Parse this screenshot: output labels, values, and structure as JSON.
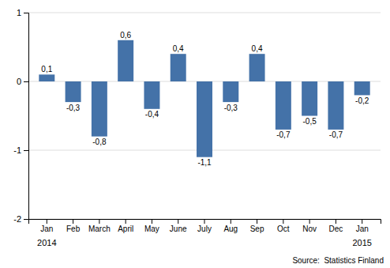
{
  "chart_data": {
    "type": "bar",
    "categories": [
      "Jan",
      "Feb",
      "March",
      "April",
      "May",
      "June",
      "July",
      "Aug",
      "Sep",
      "Oct",
      "Nov",
      "Dec",
      "Jan"
    ],
    "values": [
      0.1,
      -0.3,
      -0.8,
      0.6,
      -0.4,
      0.4,
      -1.1,
      -0.3,
      0.4,
      -0.7,
      -0.5,
      -0.7,
      -0.2
    ],
    "value_labels": [
      "0,1",
      "-0,3",
      "-0,8",
      "0,6",
      "-0,4",
      "0,4",
      "-1,1",
      "-0,3",
      "0,4",
      "-0,7",
      "-0,5",
      "-0,7",
      "-0,2"
    ],
    "data_labels": true,
    "color": "#4472a8",
    "ylim": [
      -2,
      1
    ],
    "yticks": [
      -2,
      -1,
      0,
      1
    ],
    "grid": true,
    "annotations": [
      "2014",
      "2015",
      "Source:  Statistics Finland"
    ]
  }
}
